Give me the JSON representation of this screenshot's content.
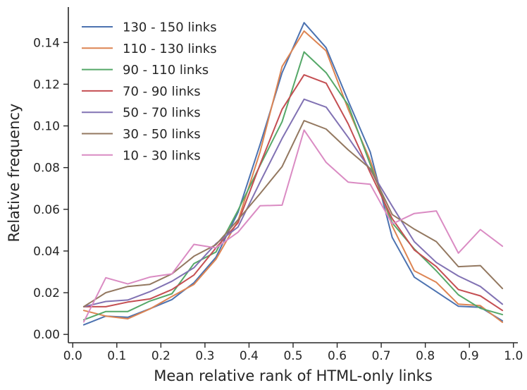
{
  "chart_data": {
    "type": "line",
    "title": "",
    "xlabel": "Mean relative rank of HTML-only links",
    "ylabel": "Relative frequency",
    "xlim": [
      -0.01,
      1.01
    ],
    "ylim": [
      -0.004,
      0.157
    ],
    "xticks": [
      "0.0",
      "0.1",
      "0.2",
      "0.3",
      "0.4",
      "0.5",
      "0.6",
      "0.7",
      "0.8",
      "0.9",
      "1.0"
    ],
    "yticks": [
      "0.00",
      "0.02",
      "0.04",
      "0.06",
      "0.08",
      "0.10",
      "0.12",
      "0.14"
    ],
    "grid": false,
    "legend_position": "top-left",
    "x": [
      0.025,
      0.075,
      0.125,
      0.175,
      0.225,
      0.275,
      0.325,
      0.375,
      0.425,
      0.475,
      0.525,
      0.575,
      0.625,
      0.675,
      0.725,
      0.775,
      0.825,
      0.875,
      0.925,
      0.975
    ],
    "series": [
      {
        "name": "130 - 150 links",
        "color": "#4c72b0",
        "values": [
          0.0046,
          0.0088,
          0.0082,
          0.0123,
          0.0167,
          0.0248,
          0.037,
          0.0585,
          0.091,
          0.1255,
          0.1495,
          0.1375,
          0.112,
          0.0875,
          0.0465,
          0.0275,
          0.0205,
          0.0135,
          0.013,
          0.0065
        ]
      },
      {
        "name": "110 - 130 links",
        "color": "#dd8452",
        "values": [
          0.0115,
          0.0088,
          0.0075,
          0.0122,
          0.0182,
          0.024,
          0.036,
          0.0545,
          0.0875,
          0.1285,
          0.1455,
          0.136,
          0.108,
          0.0835,
          0.052,
          0.0305,
          0.025,
          0.0145,
          0.0138,
          0.0058
        ]
      },
      {
        "name": "90 - 110 links",
        "color": "#55a868",
        "values": [
          0.007,
          0.011,
          0.011,
          0.016,
          0.0195,
          0.034,
          0.0395,
          0.0595,
          0.081,
          0.102,
          0.1355,
          0.1255,
          0.11,
          0.0815,
          0.0535,
          0.041,
          0.0305,
          0.019,
          0.0125,
          0.0095
        ]
      },
      {
        "name": "70 - 90 links",
        "color": "#c44e52",
        "values": [
          0.0133,
          0.0133,
          0.0155,
          0.017,
          0.0215,
          0.0285,
          0.0415,
          0.0535,
          0.0815,
          0.108,
          0.1245,
          0.1205,
          0.101,
          0.0775,
          0.0555,
          0.0405,
          0.0325,
          0.0215,
          0.0185,
          0.0115
        ]
      },
      {
        "name": "50 - 70 links",
        "color": "#8172b3",
        "values": [
          0.0133,
          0.0158,
          0.0165,
          0.0205,
          0.0255,
          0.032,
          0.0435,
          0.0515,
          0.073,
          0.094,
          0.1128,
          0.109,
          0.0945,
          0.079,
          0.0615,
          0.0445,
          0.0345,
          0.028,
          0.023,
          0.0145
        ]
      },
      {
        "name": "30 - 50 links",
        "color": "#937860",
        "values": [
          0.0133,
          0.02,
          0.023,
          0.024,
          0.029,
          0.0375,
          0.043,
          0.055,
          0.0675,
          0.0805,
          0.1025,
          0.0985,
          0.0885,
          0.0795,
          0.0575,
          0.0505,
          0.0445,
          0.0325,
          0.033,
          0.022
        ]
      },
      {
        "name": "10 - 30 links",
        "color": "#da8bc3",
        "values": [
          0.006,
          0.0272,
          0.0242,
          0.0275,
          0.029,
          0.0432,
          0.0415,
          0.049,
          0.0617,
          0.062,
          0.098,
          0.0825,
          0.073,
          0.072,
          0.053,
          0.058,
          0.0592,
          0.039,
          0.0503,
          0.0423
        ]
      }
    ]
  }
}
